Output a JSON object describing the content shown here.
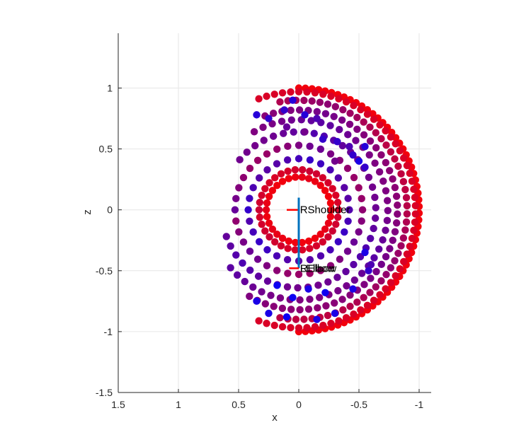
{
  "chart_data": {
    "type": "scatter",
    "title": "",
    "xlabel": "x",
    "ylabel": "z",
    "xlim": [
      1.5,
      -1.1
    ],
    "ylim": [
      -1.5,
      1.45
    ],
    "x_reversed": true,
    "grid": true,
    "xticks": [
      1.5,
      1,
      0.5,
      0,
      -0.5,
      -1
    ],
    "xtick_labels": [
      "1.5",
      "1",
      "0.5",
      "0",
      "-0.5",
      "-1"
    ],
    "yticks": [
      -1.5,
      -1,
      -0.5,
      0,
      0.5,
      1
    ],
    "ytick_labels": [
      "-1.5",
      "-1",
      "-0.5",
      "0",
      "0.5",
      "1"
    ],
    "colors": {
      "near": "#ff0000",
      "far": "#0000ff",
      "x_axis_segment": "#ff0000",
      "z_axis_segment": "#0072bd",
      "grid": "#e6e6e6",
      "axis": "#262626"
    },
    "annotations": [
      {
        "text": "RShoulder",
        "x": -0.01,
        "z": 0
      },
      {
        "text": "LElbow",
        "x": -0.01,
        "z": -0.48
      },
      {
        "text": "RElbow",
        "x": -0.01,
        "z": -0.48
      }
    ],
    "rings": [
      {
        "r": 1.0,
        "start": 90,
        "end": 270,
        "n": 58,
        "c0": 0.95,
        "c1": 0.95
      },
      {
        "r": 0.97,
        "start": 70,
        "end": 290,
        "n": 56,
        "c0": 0.85,
        "c1": 0.85
      },
      {
        "r": 0.9,
        "start": 80,
        "end": 280,
        "n": 48,
        "c0": 0.55,
        "c1": 0.75
      },
      {
        "r": 0.82,
        "start": 70,
        "end": 300,
        "n": 46,
        "c0": 0.45,
        "c1": 0.55
      },
      {
        "r": 0.74,
        "start": 60,
        "end": 320,
        "n": 42,
        "c0": 0.35,
        "c1": 0.5
      },
      {
        "r": 0.64,
        "start": 40,
        "end": 340,
        "n": 40,
        "c0": 0.3,
        "c1": 0.45
      },
      {
        "r": 0.53,
        "start": 0,
        "end": 360,
        "n": 36,
        "c0": 0.4,
        "c1": 0.6
      },
      {
        "r": 0.42,
        "start": 0,
        "end": 360,
        "n": 28,
        "c0": 0.2,
        "c1": 0.35
      },
      {
        "r": 0.33,
        "start": 0,
        "end": 360,
        "n": 34,
        "c0": 0.8,
        "c1": 0.85
      },
      {
        "r": 0.27,
        "start": 0,
        "end": 360,
        "n": 30,
        "c0": 0.9,
        "c1": 0.95
      }
    ],
    "extra_points": [
      {
        "x": 0.35,
        "z": 0.78,
        "c": 0.15
      },
      {
        "x": 0.25,
        "z": 0.75,
        "c": 0.2
      },
      {
        "x": 0.12,
        "z": 0.82,
        "c": 0.2
      },
      {
        "x": 0.05,
        "z": 0.9,
        "c": 0.15
      },
      {
        "x": -0.05,
        "z": 0.78,
        "c": 0.15
      },
      {
        "x": -0.15,
        "z": 0.75,
        "c": 0.3
      },
      {
        "x": -0.2,
        "z": 0.58,
        "c": 0.2
      },
      {
        "x": -0.32,
        "z": 0.56,
        "c": 0.2
      },
      {
        "x": -0.42,
        "z": 0.52,
        "c": 0.3
      },
      {
        "x": -0.55,
        "z": 0.52,
        "c": 0.15
      },
      {
        "x": -0.5,
        "z": 0.4,
        "c": 0.1
      },
      {
        "x": -0.55,
        "z": 0.35,
        "c": 0.2
      },
      {
        "x": -0.45,
        "z": 0.45,
        "c": 0.2
      },
      {
        "x": -0.55,
        "z": -0.35,
        "c": 0.1
      },
      {
        "x": -0.6,
        "z": -0.45,
        "c": 0.3
      },
      {
        "x": -0.58,
        "z": -0.5,
        "c": 0.2
      },
      {
        "x": -0.45,
        "z": -0.65,
        "c": 0.1
      },
      {
        "x": -0.3,
        "z": -0.85,
        "c": 0.1
      },
      {
        "x": -0.15,
        "z": -0.9,
        "c": 0.1
      },
      {
        "x": 0.1,
        "z": -0.88,
        "c": 0.05
      },
      {
        "x": 0.25,
        "z": -0.85,
        "c": 0.1
      },
      {
        "x": 0.35,
        "z": -0.75,
        "c": 0.1
      },
      {
        "x": 0.18,
        "z": -0.62,
        "c": 0.05
      },
      {
        "x": 0.05,
        "z": -0.72,
        "c": 0.05
      },
      {
        "x": -0.08,
        "z": -0.65,
        "c": 0.1
      },
      {
        "x": -0.22,
        "z": -0.68,
        "c": 0.05
      },
      {
        "x": 0.1,
        "z": 0.68,
        "c": 0.4
      },
      {
        "x": -0.05,
        "z": 0.64,
        "c": 0.45
      },
      {
        "x": -0.3,
        "z": 0.4,
        "c": 0.45
      }
    ]
  }
}
